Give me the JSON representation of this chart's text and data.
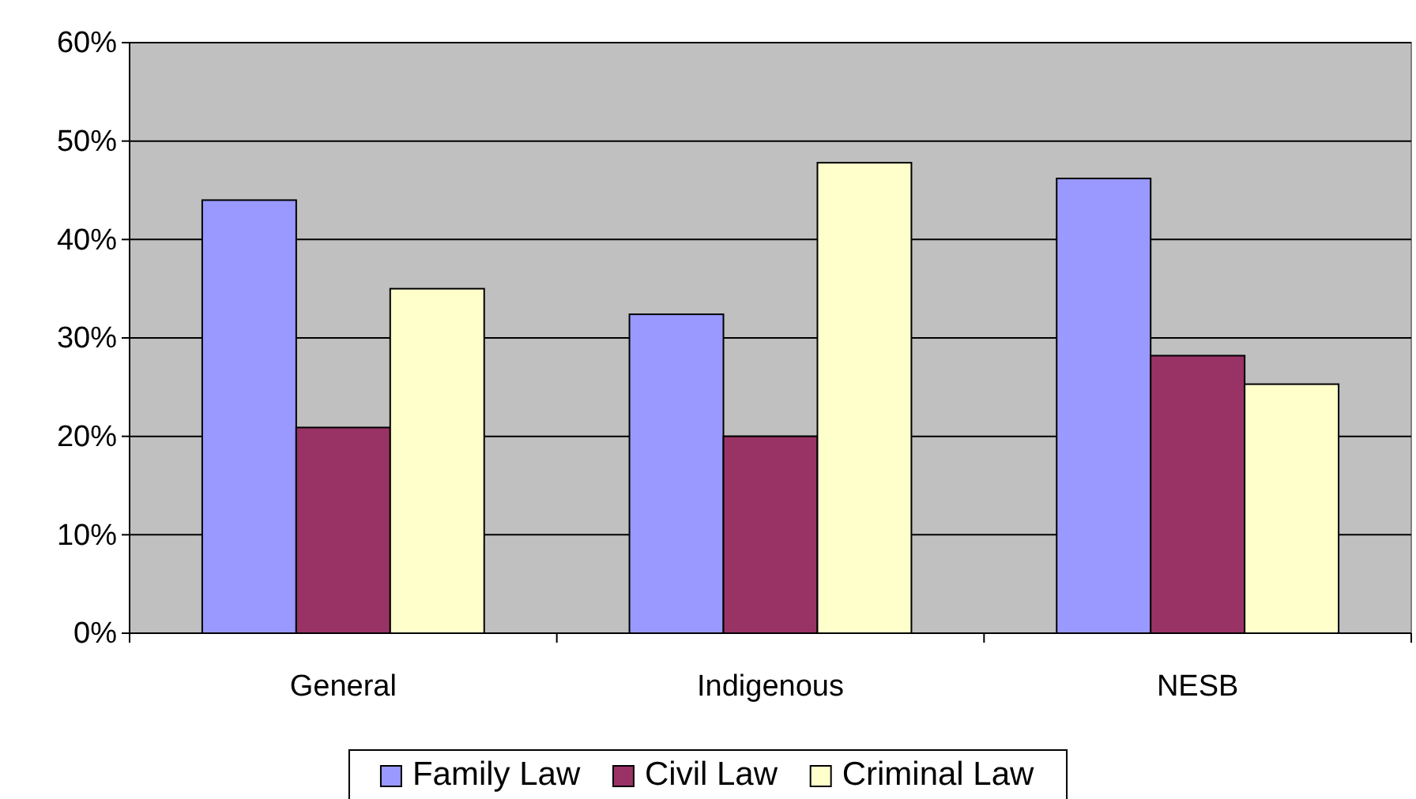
{
  "chart_data": {
    "type": "bar",
    "categories": [
      "General",
      "Indigenous",
      "NESB"
    ],
    "series": [
      {
        "name": "Family Law",
        "color": "#9999ff",
        "values": [
          44,
          32.4,
          46.2
        ]
      },
      {
        "name": "Civil Law",
        "color": "#993366",
        "values": [
          20.9,
          20,
          28.2
        ]
      },
      {
        "name": "Criminal Law",
        "color": "#ffffcc",
        "values": [
          35,
          47.8,
          25.3
        ]
      }
    ],
    "ylim": [
      0,
      60
    ],
    "yticks": [
      {
        "value": 0,
        "label": "0%"
      },
      {
        "value": 10,
        "label": "10%"
      },
      {
        "value": 20,
        "label": "20%"
      },
      {
        "value": 30,
        "label": "30%"
      },
      {
        "value": 40,
        "label": "40%"
      },
      {
        "value": 50,
        "label": "50%"
      },
      {
        "value": 60,
        "label": "60%"
      }
    ],
    "grid": "y",
    "legend": "bottom"
  }
}
